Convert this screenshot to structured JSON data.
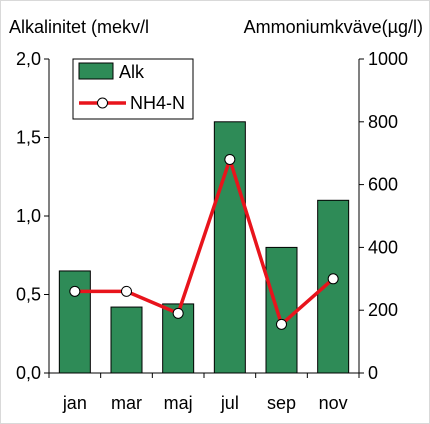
{
  "chart_data": {
    "type": "bar+line",
    "categories": [
      "jan",
      "mar",
      "maj",
      "jul",
      "sep",
      "nov"
    ],
    "series": [
      {
        "name": "Alk",
        "type": "bar",
        "axis": "left",
        "values": [
          0.65,
          0.42,
          0.44,
          1.6,
          0.8,
          1.1
        ]
      },
      {
        "name": "NH4-N",
        "type": "line",
        "axis": "right",
        "values": [
          260,
          260,
          190,
          680,
          155,
          300
        ]
      }
    ],
    "y_left": {
      "label": "Alkalinitet (mekv/l",
      "ylim": [
        0,
        2
      ],
      "ticks": [
        0,
        0.5,
        1,
        1.5,
        2
      ],
      "tick_labels": [
        "0,0",
        "0,5",
        "1,0",
        "1,5",
        "2,0"
      ]
    },
    "y_right": {
      "label": "Ammoniumkväve(µg/l)",
      "ylim": [
        0,
        1000
      ],
      "ticks": [
        0,
        200,
        400,
        600,
        800,
        1000
      ],
      "tick_labels": [
        "0",
        "200",
        "400",
        "600",
        "800",
        "1000"
      ]
    },
    "legend": {
      "placement": "top-left"
    },
    "grid": false,
    "colors": {
      "bar_fill": "#2e8b57",
      "bar_stroke": "#000000",
      "line": "#e8141c",
      "marker_fill": "#ffffff",
      "axis": "#000000"
    }
  }
}
